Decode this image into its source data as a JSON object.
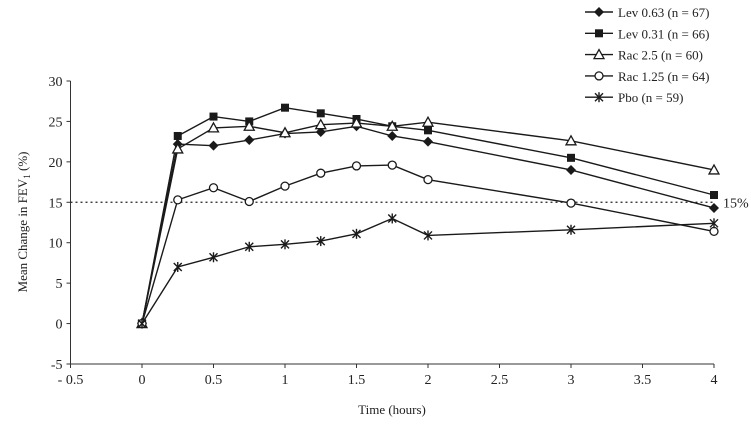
{
  "chart_data": {
    "type": "line",
    "title": "",
    "xlabel": "Time (hours)",
    "ylabel": "Mean Change in FEV",
    "ylabel_subscript": "1",
    "ylabel_suffix": " (%)",
    "xlim": [
      -0.5,
      4
    ],
    "ylim": [
      -5,
      30
    ],
    "x_ticks": [
      "-0.5",
      "0",
      "0.5",
      "1",
      "1.5",
      "2",
      "2.5",
      "3",
      "3.5",
      "4"
    ],
    "y_ticks": [
      "-5",
      "0",
      "5",
      "10",
      "15",
      "20",
      "25",
      "30"
    ],
    "grid": false,
    "legend_position": "top-right",
    "reference_line": {
      "value": 15,
      "label": "15%",
      "style": "dotted"
    },
    "x": [
      0,
      0.25,
      0.5,
      0.75,
      1,
      1.25,
      1.5,
      1.75,
      2,
      3,
      4
    ],
    "series": [
      {
        "name": "Lev 0.63 (n = 67)",
        "marker": "diamond-filled",
        "values": [
          0,
          22.2,
          22.0,
          22.7,
          23.5,
          23.7,
          24.4,
          23.2,
          22.5,
          19.0,
          14.3
        ]
      },
      {
        "name": "Lev 0.31 (n = 66)",
        "marker": "square-filled",
        "values": [
          0,
          23.2,
          25.6,
          25.0,
          26.7,
          26.0,
          25.3,
          24.4,
          23.9,
          20.5,
          15.9
        ]
      },
      {
        "name": "Rac 2.5 (n = 60)",
        "marker": "triangle-open",
        "values": [
          0,
          21.6,
          24.2,
          24.4,
          23.6,
          24.6,
          24.8,
          24.4,
          24.9,
          22.6,
          19.0
        ]
      },
      {
        "name": "Rac 1.25 (n = 64)",
        "marker": "circle-open",
        "values": [
          0,
          15.3,
          16.8,
          15.1,
          17.0,
          18.6,
          19.5,
          19.6,
          17.8,
          14.9,
          11.4
        ]
      },
      {
        "name": "Pbo (n = 59)",
        "marker": "asterisk",
        "values": [
          0,
          7.0,
          8.2,
          9.5,
          9.8,
          10.2,
          11.1,
          13.0,
          10.9,
          11.6,
          12.4
        ]
      }
    ],
    "colors": {
      "line": "#1a1a1a",
      "axis": "#333333"
    }
  }
}
